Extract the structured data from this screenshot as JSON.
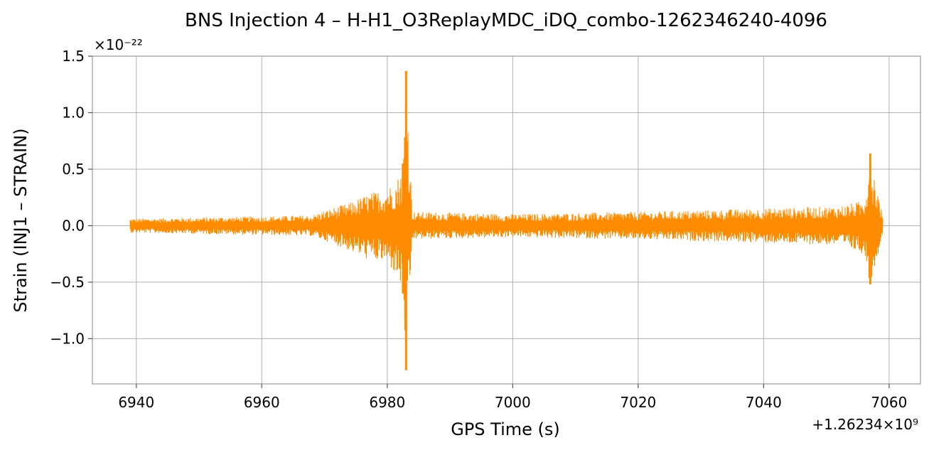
{
  "chart_data": {
    "type": "line",
    "title": "BNS Injection 4 – H-H1_O3ReplayMDC_iDQ_combo-1262346240-4096",
    "xlabel": "GPS Time (s)",
    "ylabel": "Strain (INJ1 – STRAIN)",
    "x_offset_label": "+1.26234×10⁹",
    "y_scale_label": "×10⁻²²",
    "xlim": [
      6933,
      7065
    ],
    "ylim": [
      -1.4,
      1.5
    ],
    "x_ticks": [
      6940,
      6960,
      6980,
      7000,
      7020,
      7040,
      7060
    ],
    "y_ticks": [
      -1.0,
      -0.5,
      0.0,
      0.5,
      1.0,
      1.5
    ],
    "x_tick_labels": [
      "6940",
      "6960",
      "6980",
      "7000",
      "7020",
      "7040",
      "7060"
    ],
    "y_tick_labels": [
      "−1.0",
      "−0.5",
      "0.0",
      "0.5",
      "1.0",
      "1.5"
    ],
    "grid": true,
    "series": [
      {
        "color": "#ff8c00",
        "x_range": [
          6939,
          7059
        ],
        "envelope": [
          {
            "x": 6939,
            "upper": 0.06,
            "lower": -0.06
          },
          {
            "x": 6960,
            "upper": 0.08,
            "lower": -0.08
          },
          {
            "x": 6968,
            "upper": 0.09,
            "lower": -0.09
          },
          {
            "x": 6971,
            "upper": 0.15,
            "lower": -0.15
          },
          {
            "x": 6974,
            "upper": 0.2,
            "lower": -0.22
          },
          {
            "x": 6977,
            "upper": 0.28,
            "lower": -0.3
          },
          {
            "x": 6980,
            "upper": 0.33,
            "lower": -0.33
          },
          {
            "x": 6981.5,
            "upper": 0.4,
            "lower": -0.45
          },
          {
            "x": 6982.5,
            "upper": 0.55,
            "lower": -0.6
          },
          {
            "x": 6983,
            "upper": 1.37,
            "lower": -1.28
          },
          {
            "x": 6984,
            "upper": 0.12,
            "lower": -0.12
          },
          {
            "x": 7000,
            "upper": 0.1,
            "lower": -0.1
          },
          {
            "x": 7020,
            "upper": 0.12,
            "lower": -0.12
          },
          {
            "x": 7040,
            "upper": 0.15,
            "lower": -0.15
          },
          {
            "x": 7052,
            "upper": 0.17,
            "lower": -0.17
          },
          {
            "x": 7056,
            "upper": 0.22,
            "lower": -0.25
          },
          {
            "x": 7057,
            "upper": 0.64,
            "lower": -0.52
          },
          {
            "x": 7059,
            "upper": 0.08,
            "lower": -0.08
          }
        ]
      }
    ]
  }
}
